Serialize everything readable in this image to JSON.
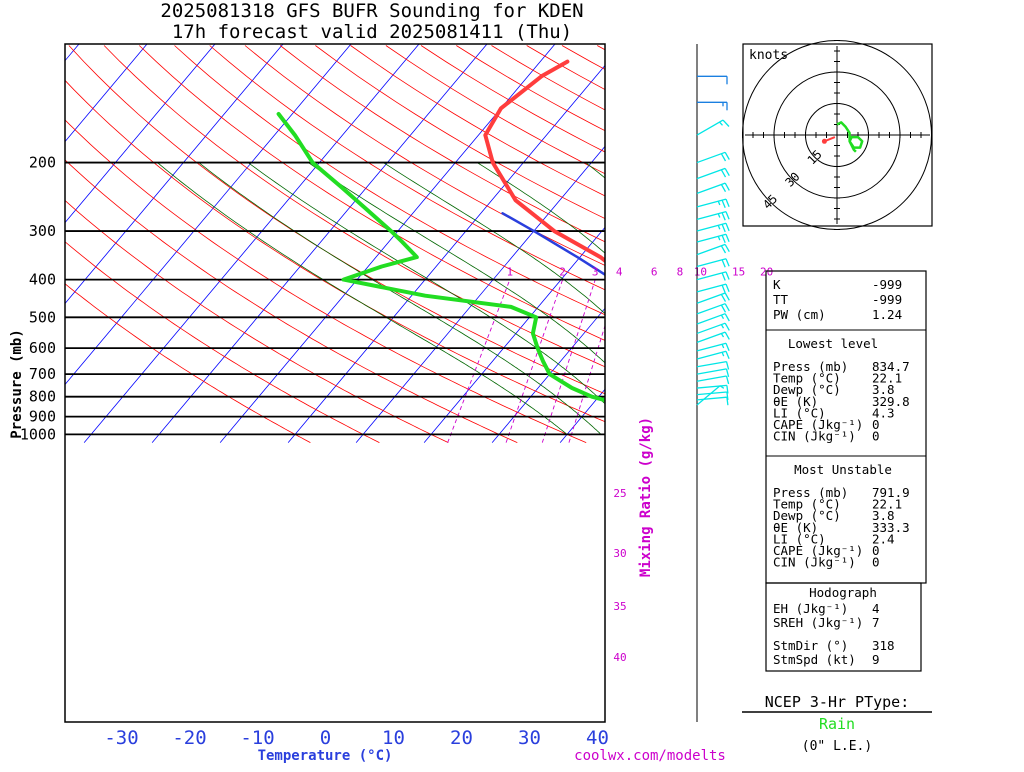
{
  "title_line1": "2025081318 GFS BUFR Sounding for KDEN",
  "title_line2": "17h forecast valid 2025081411 (Thu)",
  "colors": {
    "temperature": "#ff3d3d",
    "dewpoint": "#22dd22",
    "parcel": "#2a3fdd",
    "dry_adiabat": "#ff0000",
    "moist_adiabat": "#006600",
    "isotherm": "#0000ff",
    "mixing_ratio": "#cc00cc",
    "wind_upper": "#1a7fe0",
    "wind_lower": "#00e6e6",
    "hodo_main": "#22dd22",
    "hodo_motion": "#ff3d3d",
    "ptype_rain": "#22dd22",
    "xlabel": "#2a3fdd"
  },
  "chart_data": {
    "type": "line",
    "subtype": "skew-T log-p sounding",
    "xlabel": "Temperature (°C)",
    "ylabel": "Pressure (mb)",
    "xlim": [
      -38,
      42
    ],
    "ylim": [
      1050,
      95
    ],
    "x_ticks": [
      -30,
      -20,
      -10,
      0,
      10,
      20,
      30,
      40
    ],
    "y_ticks": [
      200,
      300,
      400,
      500,
      600,
      700,
      800,
      900,
      1000
    ],
    "series": [
      {
        "key": "temperature",
        "points": [
          [
            834.7,
            22.1
          ],
          [
            820,
            25.5
          ],
          [
            790,
            28
          ],
          [
            760,
            26
          ],
          [
            730,
            23.5
          ],
          [
            700,
            20.5
          ],
          [
            650,
            17
          ],
          [
            600,
            12
          ],
          [
            550,
            7
          ],
          [
            500,
            1
          ],
          [
            450,
            -4.5
          ],
          [
            400,
            -10
          ],
          [
            350,
            -17
          ],
          [
            300,
            -27
          ],
          [
            250,
            -36.5
          ],
          [
            200,
            -44.5
          ],
          [
            170,
            -49
          ],
          [
            145,
            -50
          ],
          [
            120,
            -48
          ],
          [
            110,
            -46
          ]
        ]
      },
      {
        "key": "dewpoint",
        "points": [
          [
            834.7,
            3.8
          ],
          [
            800,
            -1
          ],
          [
            760,
            -5
          ],
          [
            700,
            -10
          ],
          [
            650,
            -12.5
          ],
          [
            600,
            -15
          ],
          [
            550,
            -17.5
          ],
          [
            500,
            -19
          ],
          [
            470,
            -24
          ],
          [
            440,
            -38
          ],
          [
            400,
            -52
          ],
          [
            370,
            -48
          ],
          [
            350,
            -44
          ],
          [
            320,
            -48
          ],
          [
            300,
            -51
          ],
          [
            260,
            -58
          ],
          [
            230,
            -64
          ],
          [
            200,
            -71
          ],
          [
            170,
            -77
          ],
          [
            150,
            -82
          ]
        ]
      },
      {
        "key": "parcel",
        "points": [
          [
            1050,
            30
          ],
          [
            1000,
            28.5
          ],
          [
            950,
            26.8
          ],
          [
            900,
            25
          ],
          [
            850,
            23
          ],
          [
            800,
            21
          ],
          [
            750,
            18.5
          ],
          [
            700,
            15.8
          ],
          [
            650,
            12.6
          ],
          [
            600,
            9
          ],
          [
            550,
            4.8
          ],
          [
            500,
            0
          ],
          [
            450,
            -5.7
          ],
          [
            400,
            -12.4
          ],
          [
            350,
            -20.4
          ],
          [
            300,
            -30
          ],
          [
            270,
            -36.8
          ]
        ]
      }
    ],
    "mixing_ratio_labels": [
      "1",
      "2",
      "3",
      "4",
      "6",
      "8",
      "10",
      "15",
      "20"
    ],
    "mixing_ratio_values": [
      1,
      2,
      3,
      4,
      6,
      8,
      10,
      15,
      20
    ],
    "mixing_ratio_title": "Mixing Ratio (g/kg)",
    "moist_labels": [
      "25",
      "30",
      "35",
      "40"
    ],
    "moist_values": [
      25,
      30,
      35,
      40
    ],
    "winds_kt": [
      {
        "p": 120,
        "spd": 10,
        "dir": 270
      },
      {
        "p": 140,
        "spd": 15,
        "dir": 270
      },
      {
        "p": 170,
        "spd": 15,
        "dir": 240
      },
      {
        "p": 200,
        "spd": 20,
        "dir": 250
      },
      {
        "p": 220,
        "spd": 20,
        "dir": 250
      },
      {
        "p": 240,
        "spd": 20,
        "dir": 250
      },
      {
        "p": 260,
        "spd": 25,
        "dir": 255
      },
      {
        "p": 280,
        "spd": 25,
        "dir": 255
      },
      {
        "p": 300,
        "spd": 25,
        "dir": 255
      },
      {
        "p": 320,
        "spd": 25,
        "dir": 255
      },
      {
        "p": 345,
        "spd": 20,
        "dir": 250
      },
      {
        "p": 370,
        "spd": 20,
        "dir": 255
      },
      {
        "p": 400,
        "spd": 20,
        "dir": 255
      },
      {
        "p": 430,
        "spd": 20,
        "dir": 255
      },
      {
        "p": 460,
        "spd": 20,
        "dir": 250
      },
      {
        "p": 490,
        "spd": 20,
        "dir": 250
      },
      {
        "p": 520,
        "spd": 15,
        "dir": 250
      },
      {
        "p": 550,
        "spd": 15,
        "dir": 250
      },
      {
        "p": 580,
        "spd": 15,
        "dir": 250
      },
      {
        "p": 610,
        "spd": 15,
        "dir": 255
      },
      {
        "p": 640,
        "spd": 15,
        "dir": 255
      },
      {
        "p": 670,
        "spd": 10,
        "dir": 260
      },
      {
        "p": 700,
        "spd": 10,
        "dir": 260
      },
      {
        "p": 730,
        "spd": 10,
        "dir": 260
      },
      {
        "p": 760,
        "spd": 10,
        "dir": 265
      },
      {
        "p": 790,
        "spd": 10,
        "dir": 265
      },
      {
        "p": 815,
        "spd": 10,
        "dir": 265
      },
      {
        "p": 840,
        "spd": 5,
        "dir": 230
      }
    ]
  },
  "hodograph": {
    "units": "knots",
    "ring_labels": [
      "15",
      "30",
      "45"
    ],
    "ring_values": [
      15,
      30,
      45
    ],
    "trace": [
      [
        0,
        5
      ],
      [
        2,
        6
      ],
      [
        4,
        4
      ],
      [
        6,
        1
      ],
      [
        6,
        -3
      ],
      [
        8,
        -6
      ],
      [
        11,
        -6
      ],
      [
        12,
        -3
      ],
      [
        10,
        -1
      ],
      [
        7,
        -1
      ],
      [
        6,
        -3
      ],
      [
        8,
        -7
      ],
      [
        9,
        -8
      ]
    ],
    "motion": [
      [
        -6,
        -3
      ],
      [
        -1,
        -1
      ]
    ]
  },
  "indices": {
    "k_label": "K",
    "k_value": "-999",
    "tt_label": "TT",
    "tt_value": "-999",
    "pw_label": "PW (cm)",
    "pw_value": "1.24"
  },
  "lowest_level": {
    "title": "Lowest level",
    "rows": [
      {
        "label": "Press (mb)",
        "value": "834.7"
      },
      {
        "label": "Temp (°C)",
        "value": "22.1"
      },
      {
        "label": "Dewp (°C)",
        "value": "3.8"
      },
      {
        "label": "θE (K)",
        "value": "329.8"
      },
      {
        "label": "LI (°C)",
        "value": "4.3"
      },
      {
        "label": "CAPE (Jkg⁻¹)",
        "value": "0"
      },
      {
        "label": "CIN (Jkg⁻¹)",
        "value": "0"
      }
    ]
  },
  "most_unstable": {
    "title": "Most Unstable",
    "rows": [
      {
        "label": "Press (mb)",
        "value": "791.9"
      },
      {
        "label": "Temp (°C)",
        "value": "22.1"
      },
      {
        "label": "Dewp (°C)",
        "value": "3.8"
      },
      {
        "label": "θE (K)",
        "value": "333.3"
      },
      {
        "label": "LI (°C)",
        "value": "2.4"
      },
      {
        "label": "CAPE (Jkg⁻¹)",
        "value": "0"
      },
      {
        "label": "CIN (Jkg⁻¹)",
        "value": "0"
      }
    ]
  },
  "hodo_stats": {
    "title": "Hodograph",
    "rows": [
      {
        "label": "EH (Jkg⁻¹)",
        "value": "4"
      },
      {
        "label": "SREH (Jkg⁻¹)",
        "value": "7"
      },
      {
        "label": "StmDir (°)",
        "value": "318"
      },
      {
        "label": "StmSpd (kt)",
        "value": "9"
      }
    ]
  },
  "ptype": {
    "title": "NCEP 3-Hr PType:",
    "value": "Rain",
    "note": "(0\" L.E.)"
  },
  "credit": "coolwx.com/modelts"
}
